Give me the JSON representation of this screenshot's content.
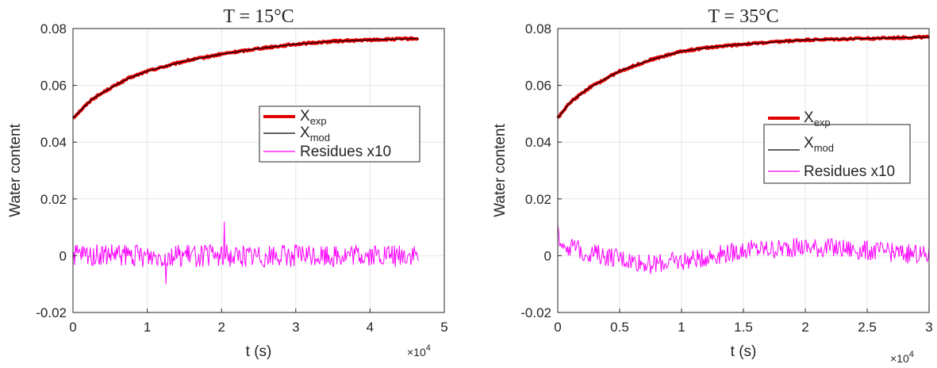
{
  "figure": {
    "panels": [
      {
        "title": "T = 15°C",
        "xlabel": "t (s)",
        "ylabel": "Water content",
        "x_multiplier_label": "×10",
        "x_multiplier_exp": "4",
        "legend": {
          "exp": "X",
          "exp_sub": "exp",
          "mod": "X",
          "mod_sub": "mod",
          "res": "Residues x10"
        }
      },
      {
        "title": "T = 35°C",
        "xlabel": "t (s)",
        "ylabel": "Water content",
        "x_multiplier_label": "×10",
        "x_multiplier_exp": "4",
        "legend": {
          "exp": "X",
          "exp_sub": "exp",
          "mod": "X",
          "mod_sub": "mod",
          "res": "Residues x10"
        }
      }
    ]
  },
  "chart_data": [
    {
      "type": "line",
      "title": "T = 15°C",
      "xlabel": "t (s)",
      "ylabel": "Water content",
      "x_scale_note": "×10^4",
      "xlim": [
        0,
        5
      ],
      "ylim": [
        -0.02,
        0.08
      ],
      "xticks": [
        "0",
        "1",
        "2",
        "3",
        "4",
        "5"
      ],
      "yticks": [
        "-0.02",
        "0",
        "0.02",
        "0.04",
        "0.06",
        "0.08"
      ],
      "grid": true,
      "legend_position": "center-right",
      "x_max_data": 4.65,
      "series": [
        {
          "name": "X_exp",
          "color": "#e00000",
          "x": [
            0,
            0.25,
            0.5,
            0.75,
            1.0,
            1.5,
            2.0,
            2.5,
            3.0,
            3.5,
            4.0,
            4.65
          ],
          "values": [
            0.0485,
            0.055,
            0.059,
            0.0625,
            0.065,
            0.0685,
            0.071,
            0.073,
            0.0745,
            0.0755,
            0.076,
            0.0765
          ]
        },
        {
          "name": "X_mod",
          "color": "#000000",
          "x": [
            0,
            0.25,
            0.5,
            0.75,
            1.0,
            1.5,
            2.0,
            2.5,
            3.0,
            3.5,
            4.0,
            4.65
          ],
          "values": [
            0.0485,
            0.055,
            0.059,
            0.0625,
            0.065,
            0.0685,
            0.071,
            0.073,
            0.0745,
            0.0755,
            0.076,
            0.0765
          ]
        },
        {
          "name": "Residues x10",
          "color": "#ff00ff",
          "noise_mean": 0.0,
          "noise_amplitude": 0.004,
          "peak": 0.012,
          "trough": -0.01
        }
      ]
    },
    {
      "type": "line",
      "title": "T = 35°C",
      "xlabel": "t (s)",
      "ylabel": "Water content",
      "x_scale_note": "×10^4",
      "xlim": [
        0,
        3
      ],
      "ylim": [
        -0.02,
        0.08
      ],
      "xticks": [
        "0",
        "0.5",
        "1",
        "1.5",
        "2",
        "2.5",
        "3"
      ],
      "yticks": [
        "-0.02",
        "0",
        "0.02",
        "0.04",
        "0.06",
        "0.08"
      ],
      "grid": true,
      "legend_position": "center-right",
      "x_max_data": 3.0,
      "series": [
        {
          "name": "X_exp",
          "color": "#e00000",
          "x": [
            0,
            0.1,
            0.25,
            0.5,
            0.75,
            1.0,
            1.25,
            1.5,
            2.0,
            2.5,
            3.0
          ],
          "values": [
            0.0485,
            0.054,
            0.059,
            0.065,
            0.069,
            0.072,
            0.0735,
            0.0745,
            0.076,
            0.0765,
            0.077
          ]
        },
        {
          "name": "X_mod",
          "color": "#000000",
          "x": [
            0,
            0.1,
            0.25,
            0.5,
            0.75,
            1.0,
            1.25,
            1.5,
            2.0,
            2.5,
            3.0
          ],
          "values": [
            0.0485,
            0.054,
            0.059,
            0.065,
            0.069,
            0.072,
            0.0735,
            0.0745,
            0.076,
            0.0765,
            0.077
          ]
        },
        {
          "name": "Residues x10",
          "color": "#ff00ff",
          "x": [
            0,
            0.05,
            0.25,
            0.5,
            0.75,
            1.0,
            1.25,
            1.5,
            2.0,
            2.5,
            3.0
          ],
          "values": [
            0.008,
            0.004,
            0.001,
            -0.001,
            -0.003,
            -0.002,
            0.0,
            0.002,
            0.003,
            0.002,
            0.0
          ],
          "noise_amplitude": 0.0035
        }
      ]
    }
  ]
}
